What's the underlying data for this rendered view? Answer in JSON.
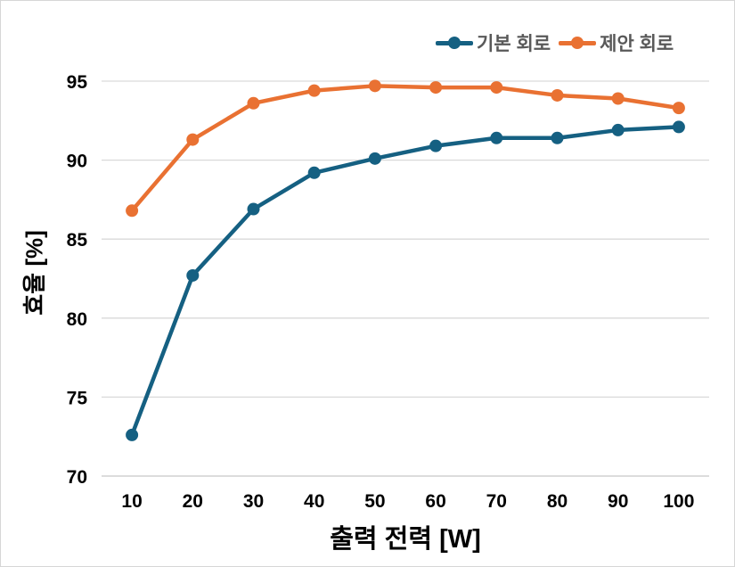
{
  "colors": {
    "background": "#ffffff",
    "border": "#d6d6d6",
    "gridline": "#d9d9d9",
    "axis_line": "#c6c6c6",
    "tick_label": "#000000",
    "legend_text": "#595959",
    "series_basic": "#156082",
    "series_proposed": "#E97132"
  },
  "chart_data": {
    "type": "line",
    "x": [
      10,
      20,
      30,
      40,
      50,
      60,
      70,
      80,
      90,
      100
    ],
    "xlabel": "출력 전력 [W]",
    "ylabel": "효율 [%]",
    "ylim": [
      70,
      95
    ],
    "yticks": [
      70,
      75,
      80,
      85,
      90,
      95
    ],
    "grid": "horizontal",
    "legend_position": "top-right",
    "marker": "circle",
    "series": [
      {
        "name": "기본 회로",
        "color": "#156082",
        "values": [
          72.6,
          82.7,
          86.9,
          89.2,
          90.1,
          90.9,
          91.4,
          91.4,
          91.9,
          92.1
        ]
      },
      {
        "name": "제안 회로",
        "color": "#E97132",
        "values": [
          86.8,
          91.3,
          93.6,
          94.4,
          94.7,
          94.6,
          94.6,
          94.1,
          93.9,
          93.3
        ]
      }
    ]
  }
}
